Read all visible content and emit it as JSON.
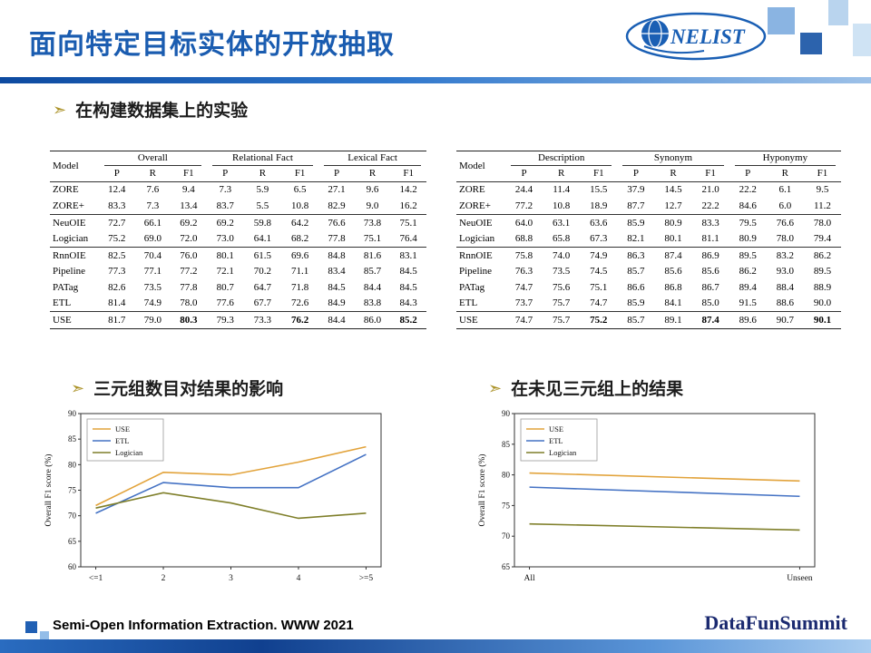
{
  "header": {
    "title": "面向特定目标实体的开放抽取",
    "logo": "NELIST"
  },
  "sections": {
    "bullet1": "在构建数据集上的实验",
    "bullet2": "三元组数目对结果的影响",
    "bullet3": "在未见三元组上的结果"
  },
  "tables": [
    {
      "model_header": "Model",
      "col_groups": [
        "Overall",
        "Relational Fact",
        "Lexical Fact"
      ],
      "sub_cols": [
        "P",
        "R",
        "F1"
      ],
      "row_groups": [
        [
          {
            "model": "ZORE",
            "values": [
              12.4,
              7.6,
              9.4,
              7.3,
              5.9,
              6.5,
              27.1,
              9.6,
              14.2
            ]
          },
          {
            "model": "ZORE+",
            "values": [
              83.3,
              7.3,
              13.4,
              83.7,
              5.5,
              10.8,
              82.9,
              9.0,
              16.2
            ]
          }
        ],
        [
          {
            "model": "NeuOIE",
            "values": [
              72.7,
              66.1,
              69.2,
              69.2,
              59.8,
              64.2,
              76.6,
              73.8,
              75.1
            ]
          },
          {
            "model": "Logician",
            "values": [
              75.2,
              69.0,
              72.0,
              73.0,
              64.1,
              68.2,
              77.8,
              75.1,
              76.4
            ]
          }
        ],
        [
          {
            "model": "RnnOIE",
            "values": [
              82.5,
              70.4,
              76.0,
              80.1,
              61.5,
              69.6,
              84.8,
              81.6,
              83.1
            ]
          },
          {
            "model": "Pipeline",
            "values": [
              77.3,
              77.1,
              77.2,
              72.1,
              70.2,
              71.1,
              83.4,
              85.7,
              84.5
            ]
          },
          {
            "model": "PATag",
            "values": [
              82.6,
              73.5,
              77.8,
              80.7,
              64.7,
              71.8,
              84.5,
              84.4,
              84.5
            ]
          },
          {
            "model": "ETL",
            "values": [
              81.4,
              74.9,
              78.0,
              77.6,
              67.7,
              72.6,
              84.9,
              83.8,
              84.3
            ]
          }
        ],
        [
          {
            "model": "USE",
            "values": [
              81.7,
              79.0,
              80.3,
              79.3,
              73.3,
              76.2,
              84.4,
              86.0,
              85.2
            ],
            "bold": [
              2,
              5,
              8
            ]
          }
        ]
      ]
    },
    {
      "model_header": "Model",
      "col_groups": [
        "Description",
        "Synonym",
        "Hyponymy"
      ],
      "sub_cols": [
        "P",
        "R",
        "F1"
      ],
      "row_groups": [
        [
          {
            "model": "ZORE",
            "values": [
              24.4,
              11.4,
              15.5,
              37.9,
              14.5,
              21.0,
              22.2,
              6.1,
              9.5
            ]
          },
          {
            "model": "ZORE+",
            "values": [
              77.2,
              10.8,
              18.9,
              87.7,
              12.7,
              22.2,
              84.6,
              6.0,
              11.2
            ]
          }
        ],
        [
          {
            "model": "NeuOIE",
            "values": [
              64.0,
              63.1,
              63.6,
              85.9,
              80.9,
              83.3,
              79.5,
              76.6,
              78.0
            ]
          },
          {
            "model": "Logician",
            "values": [
              68.8,
              65.8,
              67.3,
              82.1,
              80.1,
              81.1,
              80.9,
              78.0,
              79.4
            ]
          }
        ],
        [
          {
            "model": "RnnOIE",
            "values": [
              75.8,
              74.0,
              74.9,
              86.3,
              87.4,
              86.9,
              89.5,
              83.2,
              86.2
            ]
          },
          {
            "model": "Pipeline",
            "values": [
              76.3,
              73.5,
              74.5,
              85.7,
              85.6,
              85.6,
              86.2,
              93.0,
              89.5
            ]
          },
          {
            "model": "PATag",
            "values": [
              74.7,
              75.6,
              75.1,
              86.6,
              86.8,
              86.7,
              89.4,
              88.4,
              88.9
            ]
          },
          {
            "model": "ETL",
            "values": [
              73.7,
              75.7,
              74.7,
              85.9,
              84.1,
              85.0,
              91.5,
              88.6,
              90.0
            ]
          }
        ],
        [
          {
            "model": "USE",
            "values": [
              74.7,
              75.7,
              75.2,
              85.7,
              89.1,
              87.4,
              89.6,
              90.7,
              90.1
            ],
            "bold": [
              2,
              5,
              8
            ]
          }
        ]
      ]
    }
  ],
  "chart_data": [
    {
      "type": "line",
      "title": "",
      "x": [
        "<=1",
        "2",
        "3",
        "4",
        ">=5"
      ],
      "ylabel": "Overall F1 score (%)",
      "ylim": [
        60,
        90
      ],
      "yticks": [
        60,
        65,
        70,
        75,
        80,
        85,
        90
      ],
      "legend_position": "top-left",
      "grid": false,
      "series": [
        {
          "name": "USE",
          "color": "#E2A33B",
          "values": [
            72.0,
            78.5,
            78.0,
            80.5,
            83.5
          ]
        },
        {
          "name": "ETL",
          "color": "#4472C4",
          "values": [
            70.5,
            76.5,
            75.5,
            75.5,
            82.0
          ]
        },
        {
          "name": "Logician",
          "color": "#7F7F2A",
          "values": [
            71.5,
            74.5,
            72.5,
            69.5,
            70.5
          ]
        }
      ]
    },
    {
      "type": "line",
      "title": "",
      "x": [
        "All",
        "Unseen"
      ],
      "ylabel": "Overall F1 score (%)",
      "ylim": [
        65,
        90
      ],
      "yticks": [
        65,
        70,
        75,
        80,
        85,
        90
      ],
      "legend_position": "top-left",
      "grid": false,
      "series": [
        {
          "name": "USE",
          "color": "#E2A33B",
          "values": [
            80.3,
            79.0
          ]
        },
        {
          "name": "ETL",
          "color": "#4472C4",
          "values": [
            78.0,
            76.5
          ]
        },
        {
          "name": "Logician",
          "color": "#7F7F2A",
          "values": [
            72.0,
            71.0
          ]
        }
      ]
    }
  ],
  "footer": {
    "citation": "Semi-Open Information Extraction. WWW 2021",
    "brand": "DataFunSummit"
  },
  "colors": {
    "accent_blue": "#1a5cb0",
    "brand_navy": "#1b2a70",
    "bullet_gold": "#ab9227"
  }
}
